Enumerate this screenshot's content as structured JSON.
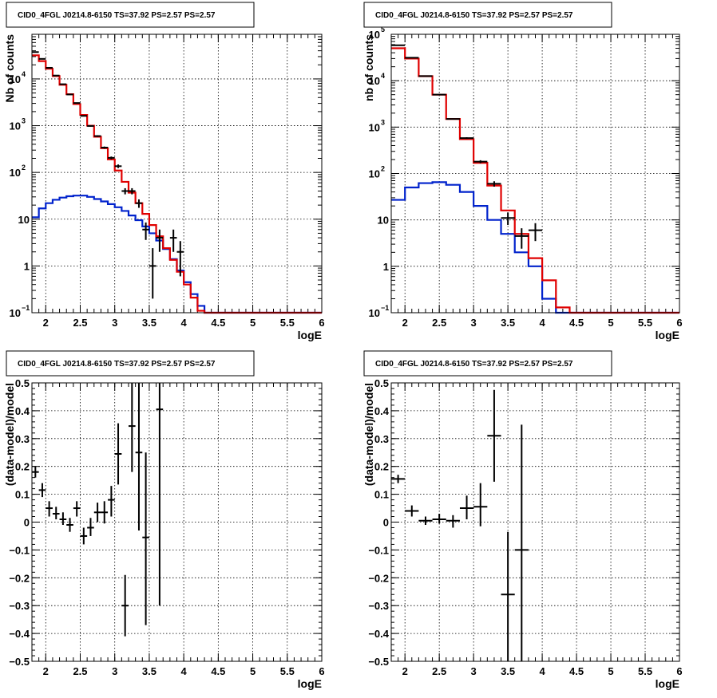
{
  "colors": {
    "data": "#000000",
    "total_model": "#e00000",
    "component_model": "#0022cc"
  },
  "chart_data": [
    {
      "id": "top-left",
      "type": "line",
      "title": "CID0_4FGL J0214.8-6150 TS=37.92 PS=2.57 PS=2.57",
      "xlabel": "logE",
      "ylabel": "Nb of counts",
      "xlim": [
        1.8,
        6.0
      ],
      "ylim": [
        0.1,
        90000
      ],
      "yscale": "log",
      "grid": true,
      "x_ticks": [
        {
          "v": 2,
          "label": "2"
        },
        {
          "v": 2.5,
          "label": "2.5"
        },
        {
          "v": 3,
          "label": "3"
        },
        {
          "v": 3.5,
          "label": "3.5"
        },
        {
          "v": 4,
          "label": "4"
        },
        {
          "v": 4.5,
          "label": "4.5"
        },
        {
          "v": 5,
          "label": "5"
        },
        {
          "v": 5.5,
          "label": "5.5"
        },
        {
          "v": 6,
          "label": "6"
        }
      ],
      "y_ticks": [
        {
          "v": 0.1,
          "label": "10",
          "exp": "−1"
        },
        {
          "v": 1,
          "label": "1"
        },
        {
          "v": 10,
          "label": "10"
        },
        {
          "v": 100,
          "label": "10",
          "exp": "2"
        },
        {
          "v": 1000,
          "label": "10",
          "exp": "3"
        },
        {
          "v": 10000,
          "label": "10",
          "exp": "4"
        }
      ],
      "bin_edges": [
        1.8,
        1.9,
        2.0,
        2.1,
        2.2,
        2.3,
        2.4,
        2.5,
        2.6,
        2.7,
        2.8,
        2.9,
        3.0,
        3.1,
        3.2,
        3.3,
        3.4,
        3.5,
        3.6,
        3.7,
        3.8,
        3.9,
        4.0,
        4.1,
        4.2,
        4.3,
        4.4,
        4.5,
        4.6,
        4.7,
        4.8,
        4.9,
        5.0,
        5.1,
        5.2,
        5.3,
        5.4,
        5.5,
        5.6,
        5.7,
        5.8,
        5.9,
        6.0
      ],
      "series": [
        {
          "role": "component",
          "values": [
            11,
            17,
            22,
            26,
            29,
            31,
            32,
            32,
            30,
            27,
            24,
            21,
            18,
            15,
            12,
            9.5,
            7,
            5,
            3.5,
            2.3,
            1.4,
            0.8,
            0.45,
            0.25,
            0.14,
            0.1,
            0.1,
            0.1,
            0.1,
            0.1,
            0.1,
            0.1,
            0.1,
            0.1,
            0.1,
            0.1,
            0.1,
            0.1,
            0.1,
            0.1,
            0.1,
            0.1
          ]
        },
        {
          "role": "total",
          "values": [
            32000,
            24000,
            16500,
            11500,
            7500,
            4700,
            2900,
            1700,
            1000,
            580,
            330,
            190,
            110,
            63,
            37,
            22,
            13,
            7.5,
            4.3,
            2.4,
            1.35,
            0.75,
            0.4,
            0.21,
            0.11,
            0.1,
            0.1,
            0.1,
            0.1,
            0.1,
            0.1,
            0.1,
            0.1,
            0.1,
            0.1,
            0.1,
            0.1,
            0.1,
            0.1,
            0.1,
            0.1,
            0.1
          ]
        }
      ],
      "points": [
        {
          "x": 1.85,
          "y": 37500,
          "dx": 0.05,
          "lo": 37000,
          "hi": 38000
        },
        {
          "x": 1.95,
          "y": 26800,
          "dx": 0.05,
          "lo": 26500,
          "hi": 27100
        },
        {
          "x": 2.05,
          "y": 17300,
          "dx": 0.05,
          "lo": 17000,
          "hi": 17600
        },
        {
          "x": 2.15,
          "y": 11800,
          "dx": 0.05,
          "lo": 11600,
          "hi": 12000
        },
        {
          "x": 2.25,
          "y": 7700,
          "dx": 0.05,
          "lo": 7600,
          "hi": 7800
        },
        {
          "x": 2.35,
          "y": 4650,
          "dx": 0.05,
          "lo": 4580,
          "hi": 4720
        },
        {
          "x": 2.45,
          "y": 3050,
          "dx": 0.05,
          "lo": 3000,
          "hi": 3100
        },
        {
          "x": 2.55,
          "y": 1620,
          "dx": 0.05,
          "lo": 1580,
          "hi": 1660
        },
        {
          "x": 2.65,
          "y": 985,
          "dx": 0.05,
          "lo": 955,
          "hi": 1015
        },
        {
          "x": 2.75,
          "y": 600,
          "dx": 0.05,
          "lo": 575,
          "hi": 625
        },
        {
          "x": 2.85,
          "y": 340,
          "dx": 0.05,
          "lo": 322,
          "hi": 358
        },
        {
          "x": 2.95,
          "y": 205,
          "dx": 0.05,
          "lo": 191,
          "hi": 219
        },
        {
          "x": 3.05,
          "y": 136,
          "dx": 0.05,
          "lo": 124,
          "hi": 148
        },
        {
          "x": 3.15,
          "y": 40,
          "dx": 0.05,
          "lo": 34,
          "hi": 46
        },
        {
          "x": 3.25,
          "y": 40,
          "dx": 0.05,
          "lo": 34,
          "hi": 46
        },
        {
          "x": 3.35,
          "y": 22,
          "dx": 0.05,
          "lo": 17.5,
          "hi": 26.5
        },
        {
          "x": 3.45,
          "y": 6,
          "dx": 0.05,
          "lo": 3.6,
          "hi": 8.5
        },
        {
          "x": 3.55,
          "y": 1,
          "dx": 0.05,
          "lo": 0.2,
          "hi": 2.4
        },
        {
          "x": 3.65,
          "y": 4,
          "dx": 0.05,
          "lo": 2,
          "hi": 6
        },
        {
          "x": 3.85,
          "y": 4,
          "dx": 0.05,
          "lo": 2,
          "hi": 6
        },
        {
          "x": 3.95,
          "y": 2,
          "dx": 0.05,
          "lo": 0.6,
          "hi": 3.4
        }
      ]
    },
    {
      "id": "top-right",
      "type": "line",
      "title": "CID0_4FGL J0214.8-6150 TS=37.92 PS=2.57 PS=2.57",
      "xlabel": "logE",
      "ylabel": "nb of counts",
      "xlim": [
        1.8,
        6.0
      ],
      "ylim": [
        0.1,
        100000
      ],
      "yscale": "log",
      "grid": true,
      "x_ticks": [
        {
          "v": 2,
          "label": "2"
        },
        {
          "v": 2.5,
          "label": "2.5"
        },
        {
          "v": 3,
          "label": "3"
        },
        {
          "v": 3.5,
          "label": "3.5"
        },
        {
          "v": 4,
          "label": "4"
        },
        {
          "v": 4.5,
          "label": "4.5"
        },
        {
          "v": 5,
          "label": "5"
        },
        {
          "v": 5.5,
          "label": "5.5"
        },
        {
          "v": 6,
          "label": "6"
        }
      ],
      "y_ticks": [
        {
          "v": 0.1,
          "label": "10",
          "exp": "−1"
        },
        {
          "v": 1,
          "label": "1"
        },
        {
          "v": 10,
          "label": "10"
        },
        {
          "v": 100,
          "label": "10",
          "exp": "2"
        },
        {
          "v": 1000,
          "label": "10",
          "exp": "3"
        },
        {
          "v": 10000,
          "label": "10",
          "exp": "4"
        },
        {
          "v": 100000,
          "label": "10",
          "exp": "5"
        }
      ],
      "bin_edges": [
        1.8,
        2.0,
        2.2,
        2.4,
        2.6,
        2.8,
        3.0,
        3.2,
        3.4,
        3.6,
        3.8,
        4.0,
        4.2,
        4.4,
        4.6,
        4.8,
        5.0,
        5.2,
        5.4,
        5.6,
        5.8,
        6.0
      ],
      "series": [
        {
          "role": "component",
          "values": [
            27,
            50,
            62,
            65,
            57,
            40,
            20,
            10,
            5,
            2,
            1,
            0.2,
            0.1,
            0.1,
            0.1,
            0.1,
            0.1,
            0.1,
            0.1,
            0.1,
            0.1
          ]
        },
        {
          "role": "total",
          "values": [
            50000,
            30000,
            12500,
            5000,
            1500,
            550,
            170,
            55,
            16,
            5,
            1.5,
            0.5,
            0.13,
            0.1,
            0.1,
            0.1,
            0.1,
            0.1,
            0.1,
            0.1,
            0.1
          ]
        }
      ],
      "points": [
        {
          "x": 1.9,
          "y": 58000,
          "dx": 0.1,
          "lo": 57500,
          "hi": 58500
        },
        {
          "x": 2.1,
          "y": 31200,
          "dx": 0.1,
          "lo": 30900,
          "hi": 31500
        },
        {
          "x": 2.3,
          "y": 12600,
          "dx": 0.1,
          "lo": 12400,
          "hi": 12800
        },
        {
          "x": 2.5,
          "y": 5000,
          "dx": 0.1,
          "lo": 4930,
          "hi": 5070
        },
        {
          "x": 2.7,
          "y": 1500,
          "dx": 0.1,
          "lo": 1460,
          "hi": 1540
        },
        {
          "x": 2.9,
          "y": 580,
          "dx": 0.1,
          "lo": 556,
          "hi": 604
        },
        {
          "x": 3.1,
          "y": 180,
          "dx": 0.1,
          "lo": 167,
          "hi": 193
        },
        {
          "x": 3.3,
          "y": 60,
          "dx": 0.1,
          "lo": 52,
          "hi": 68
        },
        {
          "x": 3.5,
          "y": 11,
          "dx": 0.1,
          "lo": 7.8,
          "hi": 14.5
        },
        {
          "x": 3.7,
          "y": 4.5,
          "dx": 0.1,
          "lo": 2.4,
          "hi": 6.6
        },
        {
          "x": 3.9,
          "y": 6,
          "dx": 0.1,
          "lo": 3.5,
          "hi": 8.5
        }
      ]
    },
    {
      "id": "bottom-left",
      "type": "scatter",
      "title": "CID0_4FGL J0214.8-6150 TS=37.92 PS=2.57 PS=2.57",
      "xlabel": "logE",
      "ylabel": "(data-model)/model",
      "xlim": [
        1.8,
        6.0
      ],
      "ylim": [
        -0.5,
        0.5
      ],
      "yscale": "linear",
      "grid": true,
      "x_ticks": [
        {
          "v": 2,
          "label": "2"
        },
        {
          "v": 2.5,
          "label": "2.5"
        },
        {
          "v": 3,
          "label": "3"
        },
        {
          "v": 3.5,
          "label": "3.5"
        },
        {
          "v": 4,
          "label": "4"
        },
        {
          "v": 4.5,
          "label": "4.5"
        },
        {
          "v": 5,
          "label": "5"
        },
        {
          "v": 5.5,
          "label": "5.5"
        },
        {
          "v": 6,
          "label": "6"
        }
      ],
      "y_ticks": [
        {
          "v": -0.5,
          "label": "−0.5"
        },
        {
          "v": -0.4,
          "label": "−0.4"
        },
        {
          "v": -0.3,
          "label": "−0.3"
        },
        {
          "v": -0.2,
          "label": "−0.2"
        },
        {
          "v": -0.1,
          "label": "−0.1"
        },
        {
          "v": 0,
          "label": "0"
        },
        {
          "v": 0.1,
          "label": "0.1"
        },
        {
          "v": 0.2,
          "label": "0.2"
        },
        {
          "v": 0.3,
          "label": "0.3"
        },
        {
          "v": 0.4,
          "label": "0.4"
        },
        {
          "v": 0.5,
          "label": "0.5"
        }
      ],
      "points": [
        {
          "x": 1.85,
          "y": 0.18,
          "dx": 0.05,
          "lo": 0.16,
          "hi": 0.2
        },
        {
          "x": 1.95,
          "y": 0.115,
          "dx": 0.05,
          "lo": 0.09,
          "hi": 0.14
        },
        {
          "x": 2.05,
          "y": 0.05,
          "dx": 0.05,
          "lo": 0.02,
          "hi": 0.075
        },
        {
          "x": 2.15,
          "y": 0.03,
          "dx": 0.05,
          "lo": 0.01,
          "hi": 0.055
        },
        {
          "x": 2.25,
          "y": 0.01,
          "dx": 0.05,
          "lo": -0.01,
          "hi": 0.035
        },
        {
          "x": 2.35,
          "y": -0.01,
          "dx": 0.05,
          "lo": -0.035,
          "hi": 0.015
        },
        {
          "x": 2.45,
          "y": 0.05,
          "dx": 0.05,
          "lo": 0.02,
          "hi": 0.075
        },
        {
          "x": 2.55,
          "y": -0.05,
          "dx": 0.05,
          "lo": -0.08,
          "hi": -0.02
        },
        {
          "x": 2.65,
          "y": -0.02,
          "dx": 0.05,
          "lo": -0.05,
          "hi": 0.015
        },
        {
          "x": 2.75,
          "y": 0.035,
          "dx": 0.05,
          "lo": 0.0,
          "hi": 0.07
        },
        {
          "x": 2.85,
          "y": 0.035,
          "dx": 0.05,
          "lo": -0.005,
          "hi": 0.075
        },
        {
          "x": 2.95,
          "y": 0.08,
          "dx": 0.05,
          "lo": 0.02,
          "hi": 0.13
        },
        {
          "x": 3.05,
          "y": 0.245,
          "dx": 0.05,
          "lo": 0.135,
          "hi": 0.355
        },
        {
          "x": 3.15,
          "y": -0.3,
          "dx": 0.05,
          "lo": -0.41,
          "hi": -0.19
        },
        {
          "x": 3.25,
          "y": 0.345,
          "dx": 0.05,
          "lo": 0.18,
          "hi": 0.5
        },
        {
          "x": 3.35,
          "y": 0.25,
          "dx": 0.05,
          "lo": -0.03,
          "hi": 0.5
        },
        {
          "x": 3.45,
          "y": -0.055,
          "dx": 0.05,
          "lo": -0.37,
          "hi": 0.25
        },
        {
          "x": 3.65,
          "y": 0.405,
          "dx": 0.05,
          "lo": -0.3,
          "hi": 0.5
        }
      ]
    },
    {
      "id": "bottom-right",
      "type": "scatter",
      "title": "CID0_4FGL J0214.8-6150 TS=37.92 PS=2.57 PS=2.57",
      "xlabel": "logE",
      "ylabel": "(data-model)/model",
      "xlim": [
        1.8,
        6.0
      ],
      "ylim": [
        -0.5,
        0.5
      ],
      "yscale": "linear",
      "grid": true,
      "x_ticks": [
        {
          "v": 2,
          "label": "2"
        },
        {
          "v": 2.5,
          "label": "2.5"
        },
        {
          "v": 3,
          "label": "3"
        },
        {
          "v": 3.5,
          "label": "3.5"
        },
        {
          "v": 4,
          "label": "4"
        },
        {
          "v": 4.5,
          "label": "4.5"
        },
        {
          "v": 5,
          "label": "5"
        },
        {
          "v": 5.5,
          "label": "5.5"
        },
        {
          "v": 6,
          "label": "6"
        }
      ],
      "y_ticks": [
        {
          "v": -0.5,
          "label": "−0.5"
        },
        {
          "v": -0.4,
          "label": "−0.4"
        },
        {
          "v": -0.3,
          "label": "−0.3"
        },
        {
          "v": -0.2,
          "label": "−0.2"
        },
        {
          "v": -0.1,
          "label": "−0.1"
        },
        {
          "v": 0,
          "label": "0"
        },
        {
          "v": 0.1,
          "label": "0.1"
        },
        {
          "v": 0.2,
          "label": "0.2"
        },
        {
          "v": 0.3,
          "label": "0.3"
        },
        {
          "v": 0.4,
          "label": "0.4"
        },
        {
          "v": 0.5,
          "label": "0.5"
        }
      ],
      "points": [
        {
          "x": 1.9,
          "y": 0.155,
          "dx": 0.1,
          "lo": 0.14,
          "hi": 0.17
        },
        {
          "x": 2.1,
          "y": 0.04,
          "dx": 0.1,
          "lo": 0.02,
          "hi": 0.06
        },
        {
          "x": 2.3,
          "y": 0.005,
          "dx": 0.1,
          "lo": -0.01,
          "hi": 0.02
        },
        {
          "x": 2.5,
          "y": 0.01,
          "dx": 0.1,
          "lo": -0.005,
          "hi": 0.03
        },
        {
          "x": 2.7,
          "y": 0.005,
          "dx": 0.1,
          "lo": -0.02,
          "hi": 0.025
        },
        {
          "x": 2.9,
          "y": 0.05,
          "dx": 0.1,
          "lo": 0.01,
          "hi": 0.095
        },
        {
          "x": 3.1,
          "y": 0.055,
          "dx": 0.1,
          "lo": -0.015,
          "hi": 0.14
        },
        {
          "x": 3.3,
          "y": 0.31,
          "dx": 0.1,
          "lo": 0.145,
          "hi": 0.475
        },
        {
          "x": 3.5,
          "y": -0.26,
          "dx": 0.1,
          "lo": -0.5,
          "hi": -0.035
        },
        {
          "x": 3.7,
          "y": -0.1,
          "dx": 0.1,
          "lo": -0.5,
          "hi": 0.35
        }
      ]
    }
  ]
}
